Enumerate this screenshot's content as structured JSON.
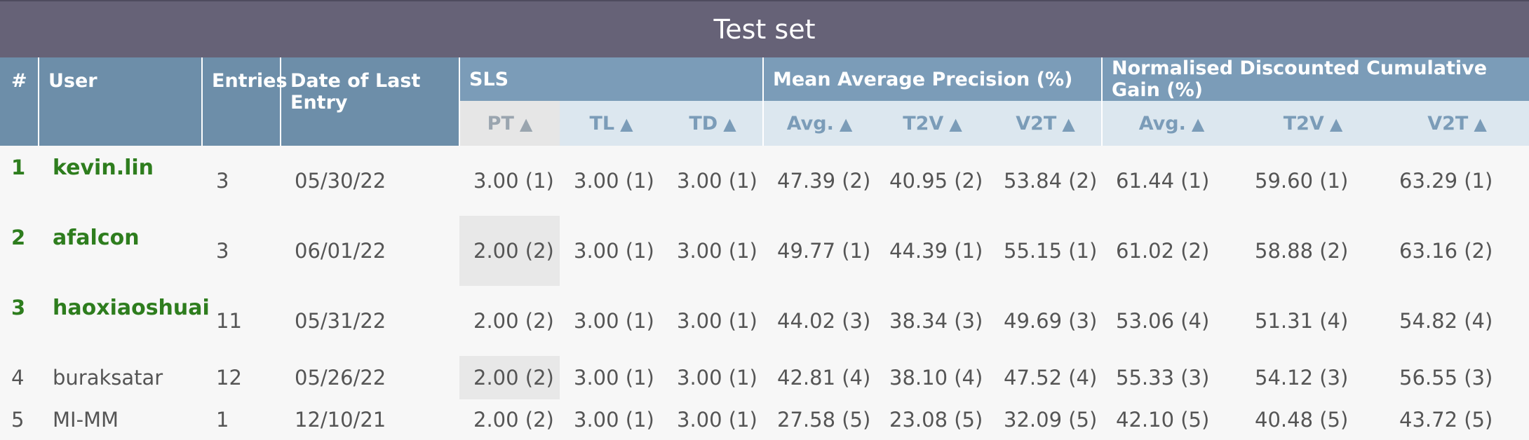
{
  "title": "Test set",
  "headers": {
    "rank": "#",
    "user": "User",
    "entries": "Entries",
    "date": "Date of Last Entry",
    "sls": "SLS",
    "map": "Mean Average Precision (%)",
    "ndcg": "Normalised Discounted Cumulative Gain (%)"
  },
  "subheaders": [
    "PT",
    "TL",
    "TD",
    "Avg.",
    "T2V",
    "V2T",
    "Avg.",
    "T2V",
    "V2T"
  ],
  "sort_arrow": "▲",
  "rows": [
    {
      "rank": "1",
      "user": "kevin.lin",
      "entries": "3",
      "date": "05/30/22",
      "cells": [
        "3.00 (1)",
        "3.00 (1)",
        "3.00 (1)",
        "47.39 (2)",
        "40.95 (2)",
        "53.84 (2)",
        "61.44 (1)",
        "59.60 (1)",
        "63.29 (1)"
      ]
    },
    {
      "rank": "2",
      "user": "afalcon",
      "entries": "3",
      "date": "06/01/22",
      "cells": [
        "2.00 (2)",
        "3.00 (1)",
        "3.00 (1)",
        "49.77 (1)",
        "44.39 (1)",
        "55.15 (1)",
        "61.02 (2)",
        "58.88 (2)",
        "63.16 (2)"
      ]
    },
    {
      "rank": "3",
      "user": "haoxiaoshuai",
      "entries": "11",
      "date": "05/31/22",
      "cells": [
        "2.00 (2)",
        "3.00 (1)",
        "3.00 (1)",
        "44.02 (3)",
        "38.34 (3)",
        "49.69 (3)",
        "53.06 (4)",
        "51.31 (4)",
        "54.82 (4)"
      ]
    },
    {
      "rank": "4",
      "user": "buraksatar",
      "entries": "12",
      "date": "05/26/22",
      "cells": [
        "2.00 (2)",
        "3.00 (1)",
        "3.00 (1)",
        "42.81 (4)",
        "38.10 (4)",
        "47.52 (4)",
        "55.33 (3)",
        "54.12 (3)",
        "56.55 (3)"
      ]
    },
    {
      "rank": "5",
      "user": "MI-MM",
      "entries": "1",
      "date": "12/10/21",
      "cells": [
        "2.00 (2)",
        "3.00 (1)",
        "3.00 (1)",
        "27.58 (5)",
        "23.08 (5)",
        "32.09 (5)",
        "42.10 (5)",
        "40.48 (5)",
        "43.72 (5)"
      ]
    }
  ],
  "colors": {
    "title_bg": "#666277",
    "header_bg": "#7b9cb8",
    "subheader_bg": "#dce7ef",
    "top_rank_green": "#2e7d1e"
  }
}
